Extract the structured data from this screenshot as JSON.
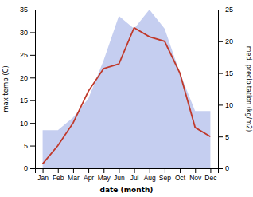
{
  "chart_data": {
    "type": "line",
    "categories": [
      "Jan",
      "Feb",
      "Mar",
      "Apr",
      "May",
      "Jun",
      "Jul",
      "Aug",
      "Sep",
      "Oct",
      "Nov",
      "Dec"
    ],
    "series": [
      {
        "type": "area",
        "axis": "y2",
        "color": "#c5cef0",
        "values": [
          6,
          6,
          8,
          11,
          17,
          24,
          22,
          25,
          22,
          15,
          9,
          9
        ]
      },
      {
        "type": "line",
        "color": "#c0392b",
        "values": [
          1,
          5,
          10,
          17,
          22,
          23,
          31,
          29,
          28,
          21,
          9,
          7
        ]
      }
    ],
    "x_label": "date (month)",
    "y_label": "max temp (C)",
    "y2_label": "med. precipitation (kg/m2)",
    "ylim": [
      0,
      35
    ],
    "yticks": [
      0,
      5,
      10,
      15,
      20,
      25,
      30,
      35
    ],
    "y2lim": [
      0,
      25
    ],
    "y2ticks": [
      0,
      5,
      10,
      15,
      20,
      25
    ]
  }
}
